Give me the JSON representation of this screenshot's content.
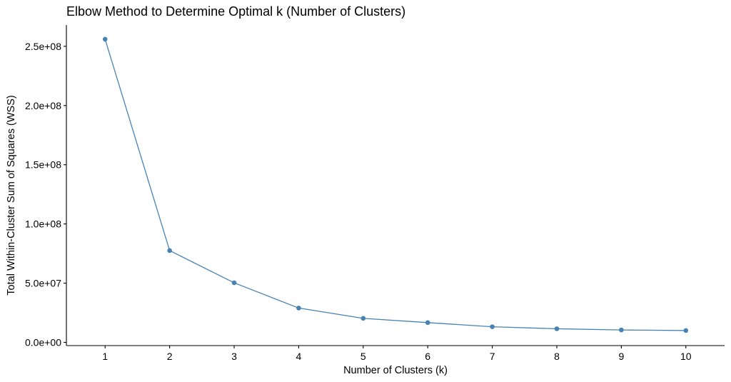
{
  "chart_data": {
    "type": "line",
    "title": "Elbow Method to Determine Optimal k (Number of Clusters)",
    "xlabel": "Number of Clusters (k)",
    "ylabel": "Total Within-Cluster Sum of Squares (WSS)",
    "x": [
      1,
      2,
      3,
      4,
      5,
      6,
      7,
      8,
      9,
      10
    ],
    "series": [
      {
        "values": [
          256000000,
          77500000,
          50300000,
          29000000,
          20300000,
          16700000,
          13200000,
          11500000,
          10500000,
          10000000
        ]
      }
    ],
    "xticks": [
      "1",
      "2",
      "3",
      "4",
      "5",
      "6",
      "7",
      "8",
      "9",
      "10"
    ],
    "yticks": [
      0,
      50000000,
      100000000,
      150000000,
      200000000,
      250000000
    ],
    "ytick_labels": [
      "0.0e+00",
      "5.0e+07",
      "1.0e+08",
      "1.5e+08",
      "2.0e+08",
      "2.5e+08"
    ],
    "xlim": [
      0.4,
      10.6
    ],
    "ylim": [
      -2700000,
      268000000
    ],
    "grid": false,
    "legend": "none",
    "series_color": "#4682B4"
  }
}
